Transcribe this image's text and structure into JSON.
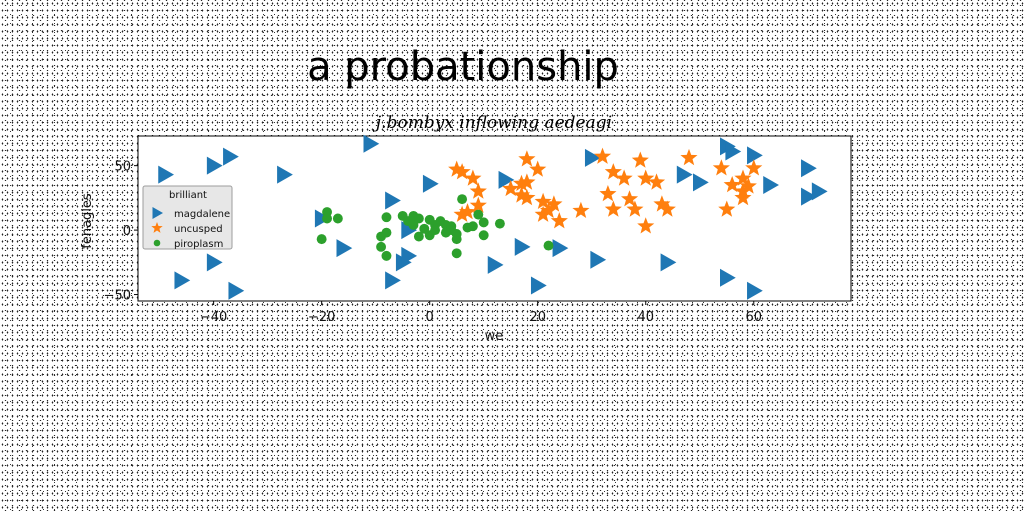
{
  "chart_data": {
    "type": "scatter",
    "title": "a probationship",
    "subtitle": "j.bombyx inflowing aedeagi",
    "xlabel": "we",
    "ylabel": "fenagles",
    "xlim": [
      -54,
      78
    ],
    "ylim": [
      -55,
      73
    ],
    "xticks": [
      -40,
      -20,
      0,
      20,
      40,
      60
    ],
    "yticks": [
      -50,
      0,
      50
    ],
    "grid": false,
    "legend": {
      "title": "brilliant",
      "position": "center-left"
    },
    "series": [
      {
        "name": "magdalene",
        "marker": "triangle-right",
        "color": "#1f77b4",
        "points": [
          [
            -49,
            43
          ],
          [
            -46,
            -39
          ],
          [
            -40,
            50
          ],
          [
            -40,
            -25
          ],
          [
            -37,
            57
          ],
          [
            -36,
            -47
          ],
          [
            -27,
            43
          ],
          [
            -20,
            9
          ],
          [
            -16,
            -14
          ],
          [
            -11,
            67
          ],
          [
            -7,
            23
          ],
          [
            -7,
            -39
          ],
          [
            -5,
            -25
          ],
          [
            -4,
            -20
          ],
          [
            -4,
            0
          ],
          [
            0,
            36
          ],
          [
            12,
            -27
          ],
          [
            14,
            39
          ],
          [
            17,
            -13
          ],
          [
            20,
            -43
          ],
          [
            24,
            -14
          ],
          [
            30,
            56
          ],
          [
            31,
            -23
          ],
          [
            44,
            -25
          ],
          [
            47,
            43
          ],
          [
            50,
            37
          ],
          [
            55,
            -37
          ],
          [
            55,
            65
          ],
          [
            56,
            61
          ],
          [
            60,
            58
          ],
          [
            60,
            -47
          ],
          [
            63,
            35
          ],
          [
            70,
            48
          ],
          [
            70,
            26
          ],
          [
            72,
            30
          ]
        ]
      },
      {
        "name": "uncusped",
        "marker": "star",
        "color": "#ff7f0e",
        "points": [
          [
            5,
            47
          ],
          [
            6,
            45
          ],
          [
            6,
            12
          ],
          [
            7,
            14
          ],
          [
            8,
            40
          ],
          [
            9,
            19
          ],
          [
            9,
            30
          ],
          [
            15,
            32
          ],
          [
            17,
            36
          ],
          [
            17,
            27
          ],
          [
            18,
            37
          ],
          [
            18,
            25
          ],
          [
            18,
            55
          ],
          [
            20,
            47
          ],
          [
            21,
            22
          ],
          [
            21,
            12
          ],
          [
            22,
            15
          ],
          [
            23,
            20
          ],
          [
            24,
            7
          ],
          [
            28,
            15
          ],
          [
            32,
            57
          ],
          [
            33,
            28
          ],
          [
            34,
            45
          ],
          [
            34,
            16
          ],
          [
            36,
            40
          ],
          [
            37,
            24
          ],
          [
            38,
            16
          ],
          [
            39,
            54
          ],
          [
            40,
            40
          ],
          [
            40,
            3
          ],
          [
            42,
            37
          ],
          [
            43,
            20
          ],
          [
            44,
            16
          ],
          [
            48,
            56
          ],
          [
            54,
            48
          ],
          [
            55,
            16
          ],
          [
            56,
            35
          ],
          [
            58,
            40
          ],
          [
            58,
            30
          ],
          [
            58,
            25
          ],
          [
            59,
            34
          ],
          [
            60,
            48
          ]
        ]
      },
      {
        "name": "piroplasm",
        "marker": "circle",
        "color": "#2ca02c",
        "points": [
          [
            -19,
            14
          ],
          [
            -19,
            9
          ],
          [
            -20,
            -7
          ],
          [
            -17,
            9
          ],
          [
            -9,
            -5
          ],
          [
            -9,
            -13
          ],
          [
            -8,
            -20
          ],
          [
            -8,
            10
          ],
          [
            -8,
            -2
          ],
          [
            -5,
            11
          ],
          [
            -4,
            7
          ],
          [
            -3,
            11
          ],
          [
            -3,
            4
          ],
          [
            -2,
            9
          ],
          [
            -2,
            -5
          ],
          [
            -1,
            1
          ],
          [
            0,
            8
          ],
          [
            0,
            -4
          ],
          [
            1,
            4
          ],
          [
            1,
            0
          ],
          [
            2,
            7
          ],
          [
            3,
            4
          ],
          [
            3,
            -2
          ],
          [
            4,
            3
          ],
          [
            4,
            0
          ],
          [
            5,
            -3
          ],
          [
            5,
            -7
          ],
          [
            5,
            -18
          ],
          [
            6,
            24
          ],
          [
            7,
            2
          ],
          [
            8,
            3
          ],
          [
            9,
            12
          ],
          [
            10,
            6
          ],
          [
            10,
            -4
          ],
          [
            13,
            5
          ],
          [
            22,
            -12
          ]
        ]
      }
    ]
  }
}
